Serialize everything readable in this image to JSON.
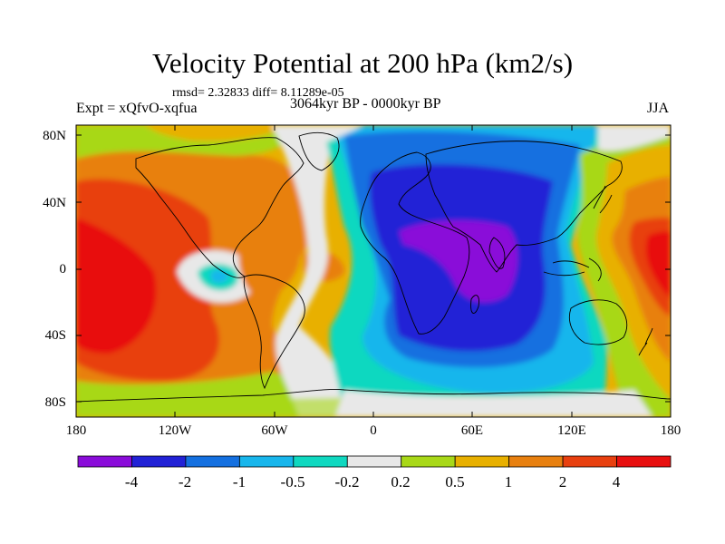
{
  "title": "Velocity Potential at 200 hPa (km2/s)",
  "stats_line": "rmsd= 2.32833 diff= 8.11289e-05",
  "experiment": "Expt = xQfvO-xqfua",
  "period": "3064kyr BP - 0000kyr BP",
  "season": "JJA",
  "map": {
    "lon_ticks": [
      "180",
      "120W",
      "60W",
      "0",
      "60E",
      "120E",
      "180"
    ],
    "lat_ticks": [
      "80N",
      "40N",
      "0",
      "40S",
      "80S"
    ]
  },
  "colorbar": {
    "labels": [
      "-4",
      "-2",
      "-1",
      "-0.5",
      "-0.2",
      "0.2",
      "0.5",
      "1",
      "2",
      "4"
    ],
    "colors": [
      "#8a0cd9",
      "#2222d6",
      "#1470e0",
      "#18b6ec",
      "#10d8c0",
      "#e8e8e8",
      "#a8d818",
      "#e8b000",
      "#e88010",
      "#e84010",
      "#e81010"
    ]
  }
}
